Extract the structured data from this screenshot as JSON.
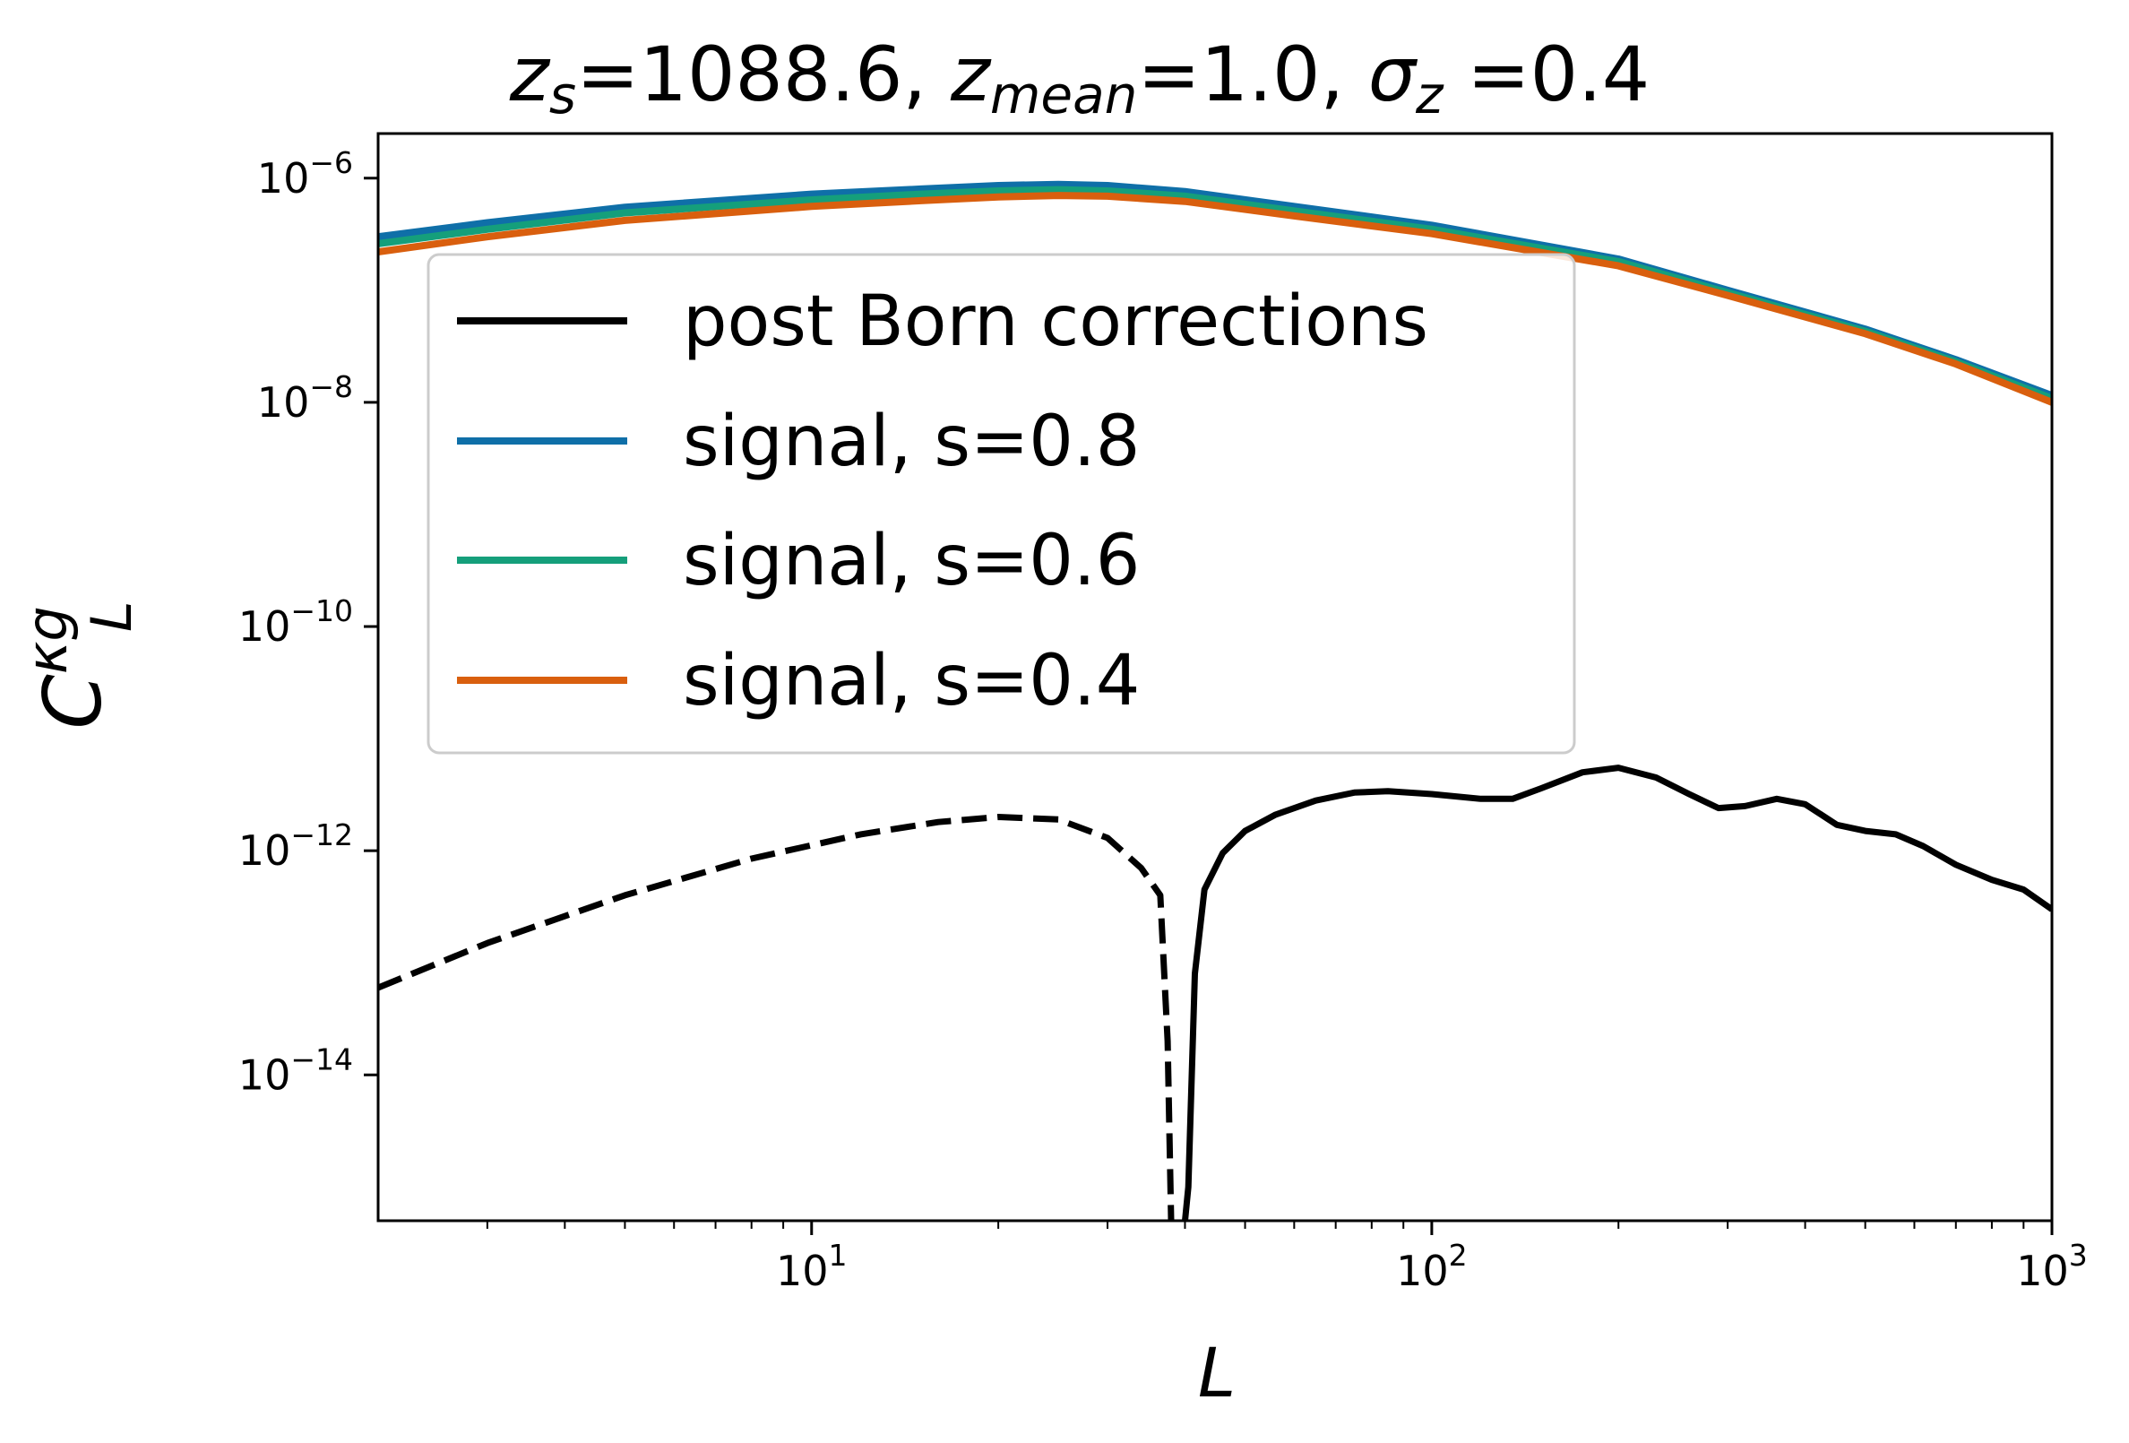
{
  "chart_data": {
    "type": "line",
    "title": {
      "z_s_value": "1088.6",
      "z_mean_value": "1.0",
      "sigma_z_value": "0.4"
    },
    "xlabel": "L",
    "ylabel": {
      "base": "C",
      "superscript": "κg",
      "subscript": "L"
    },
    "xscale": "log",
    "yscale": "log",
    "xlim": [
      2,
      1000
    ],
    "ylim": [
      5e-16,
      2.5e-06
    ],
    "x_ticks": [
      {
        "base": "10",
        "exp": "1",
        "value": 10
      },
      {
        "base": "10",
        "exp": "2",
        "value": 100
      },
      {
        "base": "10",
        "exp": "3",
        "value": 1000
      }
    ],
    "y_ticks": [
      {
        "base": "10",
        "exp": "−6",
        "value": 1e-06
      },
      {
        "base": "10",
        "exp": "−8",
        "value": 1e-08
      },
      {
        "base": "10",
        "exp": "−10",
        "value": 1e-10
      },
      {
        "base": "10",
        "exp": "−12",
        "value": 1e-12
      },
      {
        "base": "10",
        "exp": "−14",
        "value": 1e-14
      }
    ],
    "grid": false,
    "legend_position": "upper-left",
    "series": [
      {
        "name": "post Born corrections",
        "color": "#000000",
        "segments": [
          {
            "style": "dashed",
            "note_values_are_magnitudes": true,
            "points": [
              [
                2,
                6e-14
              ],
              [
                3,
                1.5e-13
              ],
              [
                5,
                4e-13
              ],
              [
                8,
                8.5e-13
              ],
              [
                12,
                1.4e-12
              ],
              [
                16,
                1.8e-12
              ],
              [
                20,
                2e-12
              ],
              [
                25,
                1.9e-12
              ],
              [
                30,
                1.3e-12
              ],
              [
                34,
                7e-13
              ],
              [
                36.5,
                4e-13
              ],
              [
                37.5,
                2e-14
              ],
              [
                38,
                5e-16
              ]
            ]
          },
          {
            "style": "solid",
            "points": [
              [
                40,
                5e-16
              ],
              [
                40.5,
                1e-15
              ],
              [
                41.5,
                8e-14
              ],
              [
                43,
                4.5e-13
              ],
              [
                46,
                9.5e-13
              ],
              [
                50,
                1.5e-12
              ],
              [
                56,
                2.1e-12
              ],
              [
                65,
                2.8e-12
              ],
              [
                75,
                3.3e-12
              ],
              [
                85,
                3.4e-12
              ],
              [
                100,
                3.2e-12
              ],
              [
                120,
                2.9e-12
              ],
              [
                135,
                2.9e-12
              ],
              [
                150,
                3.6e-12
              ],
              [
                175,
                5e-12
              ],
              [
                200,
                5.5e-12
              ],
              [
                230,
                4.5e-12
              ],
              [
                260,
                3.2e-12
              ],
              [
                290,
                2.4e-12
              ],
              [
                320,
                2.5e-12
              ],
              [
                360,
                2.9e-12
              ],
              [
                400,
                2.6e-12
              ],
              [
                450,
                1.7e-12
              ],
              [
                500,
                1.5e-12
              ],
              [
                560,
                1.4e-12
              ],
              [
                620,
                1.1e-12
              ],
              [
                700,
                7.5e-13
              ],
              [
                800,
                5.5e-13
              ],
              [
                900,
                4.5e-13
              ],
              [
                1000,
                3e-13
              ]
            ]
          }
        ]
      },
      {
        "name": "signal, s=0.8",
        "color": "#0f6fa8",
        "segments": [
          {
            "style": "solid",
            "points": [
              [
                2,
                3e-07
              ],
              [
                3,
                4e-07
              ],
              [
                5,
                5.5e-07
              ],
              [
                10,
                7.2e-07
              ],
              [
                15,
                8e-07
              ],
              [
                20,
                8.6e-07
              ],
              [
                25,
                8.8e-07
              ],
              [
                30,
                8.6e-07
              ],
              [
                40,
                7.6e-07
              ],
              [
                60,
                5.6e-07
              ],
              [
                100,
                3.8e-07
              ],
              [
                200,
                1.9e-07
              ],
              [
                300,
                1e-07
              ],
              [
                500,
                4.5e-08
              ],
              [
                700,
                2.4e-08
              ],
              [
                1000,
                1.15e-08
              ]
            ]
          }
        ]
      },
      {
        "name": "signal, s=0.6",
        "color": "#159f7b",
        "segments": [
          {
            "style": "solid",
            "points": [
              [
                2,
                2.6e-07
              ],
              [
                3,
                3.5e-07
              ],
              [
                5,
                4.9e-07
              ],
              [
                10,
                6.4e-07
              ],
              [
                15,
                7.2e-07
              ],
              [
                20,
                7.7e-07
              ],
              [
                25,
                7.9e-07
              ],
              [
                30,
                7.7e-07
              ],
              [
                40,
                6.9e-07
              ],
              [
                60,
                5.1e-07
              ],
              [
                100,
                3.5e-07
              ],
              [
                200,
                1.8e-07
              ],
              [
                300,
                9.5e-08
              ],
              [
                500,
                4.3e-08
              ],
              [
                700,
                2.3e-08
              ],
              [
                1000,
                1.08e-08
              ]
            ]
          }
        ]
      },
      {
        "name": "signal, s=0.4",
        "color": "#d95f0e",
        "segments": [
          {
            "style": "solid",
            "points": [
              [
                2,
                2.2e-07
              ],
              [
                3,
                3e-07
              ],
              [
                5,
                4.2e-07
              ],
              [
                10,
                5.6e-07
              ],
              [
                15,
                6.3e-07
              ],
              [
                20,
                6.8e-07
              ],
              [
                25,
                7e-07
              ],
              [
                30,
                6.9e-07
              ],
              [
                40,
                6.2e-07
              ],
              [
                60,
                4.6e-07
              ],
              [
                100,
                3.2e-07
              ],
              [
                200,
                1.65e-07
              ],
              [
                300,
                9e-08
              ],
              [
                500,
                4.1e-08
              ],
              [
                700,
                2.2e-08
              ],
              [
                1000,
                1e-08
              ]
            ]
          }
        ]
      }
    ]
  }
}
